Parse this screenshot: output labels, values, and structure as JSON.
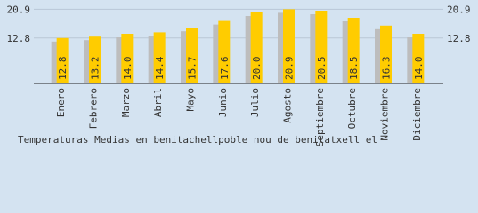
{
  "chart_data": {
    "type": "bar",
    "title": "Temperaturas Medias en benitachellpoble nou de benitatxell el",
    "categories": [
      "Enero",
      "Febrero",
      "Marzo",
      "Abril",
      "Mayo",
      "Junio",
      "Julio",
      "Agosto",
      "Septiembre",
      "Octubre",
      "Noviembre",
      "Diciembre"
    ],
    "series": [
      {
        "color": "#bdbdbd",
        "values": [
          11.8,
          12.2,
          13.0,
          13.4,
          14.7,
          16.6,
          19.0,
          19.9,
          19.5,
          17.5,
          15.3,
          13.0
        ]
      },
      {
        "color": "#ffcc00",
        "values": [
          12.8,
          13.2,
          14.0,
          14.4,
          15.7,
          17.6,
          20.0,
          20.9,
          20.5,
          18.5,
          16.3,
          14.0
        ],
        "value_labels": [
          "12.8",
          "13.2",
          "14.0",
          "14.4",
          "15.7",
          "17.6",
          "20.0",
          "20.9",
          "20.5",
          "18.5",
          "16.3",
          "14.0"
        ]
      }
    ],
    "ylim": [
      0,
      23.5
    ],
    "yticks": [
      12.8,
      20.9
    ],
    "grid": true
  }
}
